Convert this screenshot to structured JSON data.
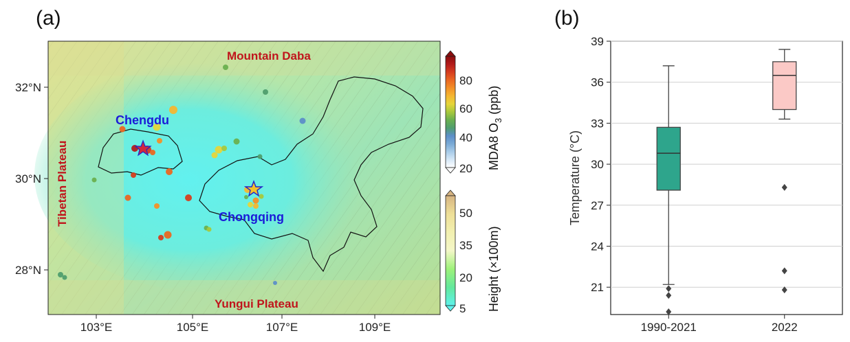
{
  "panel_a": {
    "label": "(a)",
    "lon_ticks": [
      "103°E",
      "105°E",
      "107°E",
      "109°E"
    ],
    "lat_ticks": [
      "32°N",
      "30°N",
      "28°N"
    ],
    "regions": {
      "mountain_daba": "Mountain Daba",
      "tibetan_plateau": "Tibetan Plateau",
      "yungui_plateau": "Yungui Plateau",
      "chengdu": "Chengdu",
      "chongqing": "Chongqing"
    },
    "colorbar_o3": {
      "label_prefix": "MDA8 O",
      "label_sub": "3",
      "label_suffix": " (ppb)",
      "ticks": [
        "80",
        "60",
        "40",
        "20"
      ],
      "colors": [
        "#ffffff",
        "#d6e8f7",
        "#a7cbe8",
        "#7aaad6",
        "#5c8ec8",
        "#4f9e6e",
        "#6ab04f",
        "#a8c83c",
        "#e6d53a",
        "#f4b731",
        "#f39027",
        "#ea6722",
        "#d63d1f",
        "#b31b1b",
        "#8c0d0d"
      ]
    },
    "colorbar_height": {
      "label": "Height (×100m)",
      "ticks": [
        "50",
        "35",
        "20",
        "5"
      ],
      "colors": [
        "#5ef2ec",
        "#63e89c",
        "#9ef27a",
        "#f4f7c8",
        "#f2f0b0",
        "#eedf98",
        "#d6b482"
      ]
    }
  },
  "panel_b": {
    "label": "(b)",
    "chart_data": {
      "type": "box",
      "categories": [
        "1990-2021",
        "2022"
      ],
      "ylabel": "Temperature (°C)",
      "ylim": [
        19,
        39
      ],
      "yticks": [
        21,
        24,
        27,
        30,
        33,
        36,
        39
      ],
      "grid": true,
      "series": [
        {
          "category": "1990-2021",
          "whisker_low": 21.2,
          "q1": 28.1,
          "median": 30.8,
          "q3": 32.7,
          "whisker_high": 37.2,
          "outliers": [
            20.9,
            20.4,
            19.2
          ],
          "color": "#2ea58c"
        },
        {
          "category": "2022",
          "whisker_low": 33.3,
          "q1": 34.0,
          "median": 36.5,
          "q3": 37.5,
          "whisker_high": 38.4,
          "outliers": [
            28.3,
            22.2,
            20.8
          ],
          "color": "#fbc9c6"
        }
      ]
    }
  }
}
